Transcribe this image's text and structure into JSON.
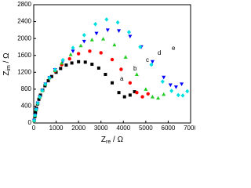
{
  "chart_data": {
    "type": "scatter",
    "x_label": [
      "Z",
      "re",
      " / Ω"
    ],
    "y_label": [
      "Z",
      "im",
      " / Ω"
    ],
    "xlim": [
      0,
      7000
    ],
    "xticks": [
      0,
      1000,
      2000,
      3000,
      4000,
      5000,
      6000,
      7000
    ],
    "ylim": [
      0,
      2800
    ],
    "yticks": [
      0,
      400,
      800,
      1200,
      1600,
      2000,
      2400,
      2800
    ],
    "annotations": [
      "a",
      "b",
      "c",
      "d",
      "e"
    ],
    "series": [
      {
        "name": "a",
        "color": "#000000",
        "marker": "square",
        "x": [
          20,
          50,
          80,
          120,
          170,
          230,
          300,
          400,
          500,
          650,
          800,
          1000,
          1200,
          1450,
          1700,
          2000,
          2300,
          2600,
          2900,
          3200,
          3500,
          3800,
          4050,
          4300,
          4500
        ],
        "values": [
          60,
          150,
          250,
          350,
          450,
          560,
          660,
          780,
          880,
          1000,
          1100,
          1200,
          1290,
          1370,
          1420,
          1450,
          1440,
          1390,
          1300,
          1150,
          950,
          720,
          620,
          660,
          740
        ]
      },
      {
        "name": "b",
        "color": "#ff0000",
        "marker": "circle",
        "x": [
          20,
          60,
          110,
          180,
          270,
          380,
          520,
          700,
          950,
          1250,
          1600,
          2000,
          2500,
          3000,
          3500,
          3900,
          4300,
          4600,
          4850,
          5100
        ],
        "values": [
          60,
          180,
          320,
          470,
          620,
          770,
          920,
          1070,
          1230,
          1380,
          1520,
          1640,
          1700,
          1660,
          1500,
          1270,
          950,
          720,
          620,
          690
        ]
      },
      {
        "name": "c",
        "color": "#22cc22",
        "marker": "triangle-up",
        "x": [
          20,
          60,
          110,
          180,
          270,
          380,
          520,
          700,
          950,
          1250,
          1650,
          2100,
          2600,
          3100,
          3600,
          4100,
          4600,
          5000,
          5300,
          5550,
          5800
        ],
        "values": [
          60,
          180,
          320,
          470,
          620,
          770,
          920,
          1070,
          1240,
          1420,
          1620,
          1830,
          1970,
          1990,
          1850,
          1560,
          1150,
          800,
          620,
          590,
          680
        ]
      },
      {
        "name": "d",
        "color": "#0000ff",
        "marker": "triangle-down",
        "x": [
          20,
          60,
          110,
          180,
          270,
          380,
          520,
          700,
          950,
          1300,
          1750,
          2250,
          2800,
          3300,
          3800,
          4300,
          4800,
          5300,
          5800,
          6100,
          6350,
          6600
        ],
        "values": [
          60,
          180,
          320,
          470,
          620,
          770,
          920,
          1070,
          1260,
          1460,
          1700,
          1930,
          2120,
          2200,
          2180,
          2050,
          1800,
          1450,
          1080,
          900,
          850,
          920
        ]
      },
      {
        "name": "e",
        "color": "#00e0e0",
        "marker": "diamond",
        "x": [
          20,
          60,
          110,
          180,
          270,
          380,
          520,
          700,
          950,
          1300,
          1750,
          2250,
          2750,
          3250,
          3750,
          4250,
          4750,
          5250,
          5750,
          6150,
          6450,
          6650,
          6850
        ],
        "values": [
          60,
          180,
          320,
          470,
          620,
          770,
          920,
          1070,
          1260,
          1490,
          1780,
          2080,
          2340,
          2450,
          2380,
          2150,
          1800,
          1380,
          980,
          760,
          660,
          650,
          750
        ]
      }
    ]
  }
}
